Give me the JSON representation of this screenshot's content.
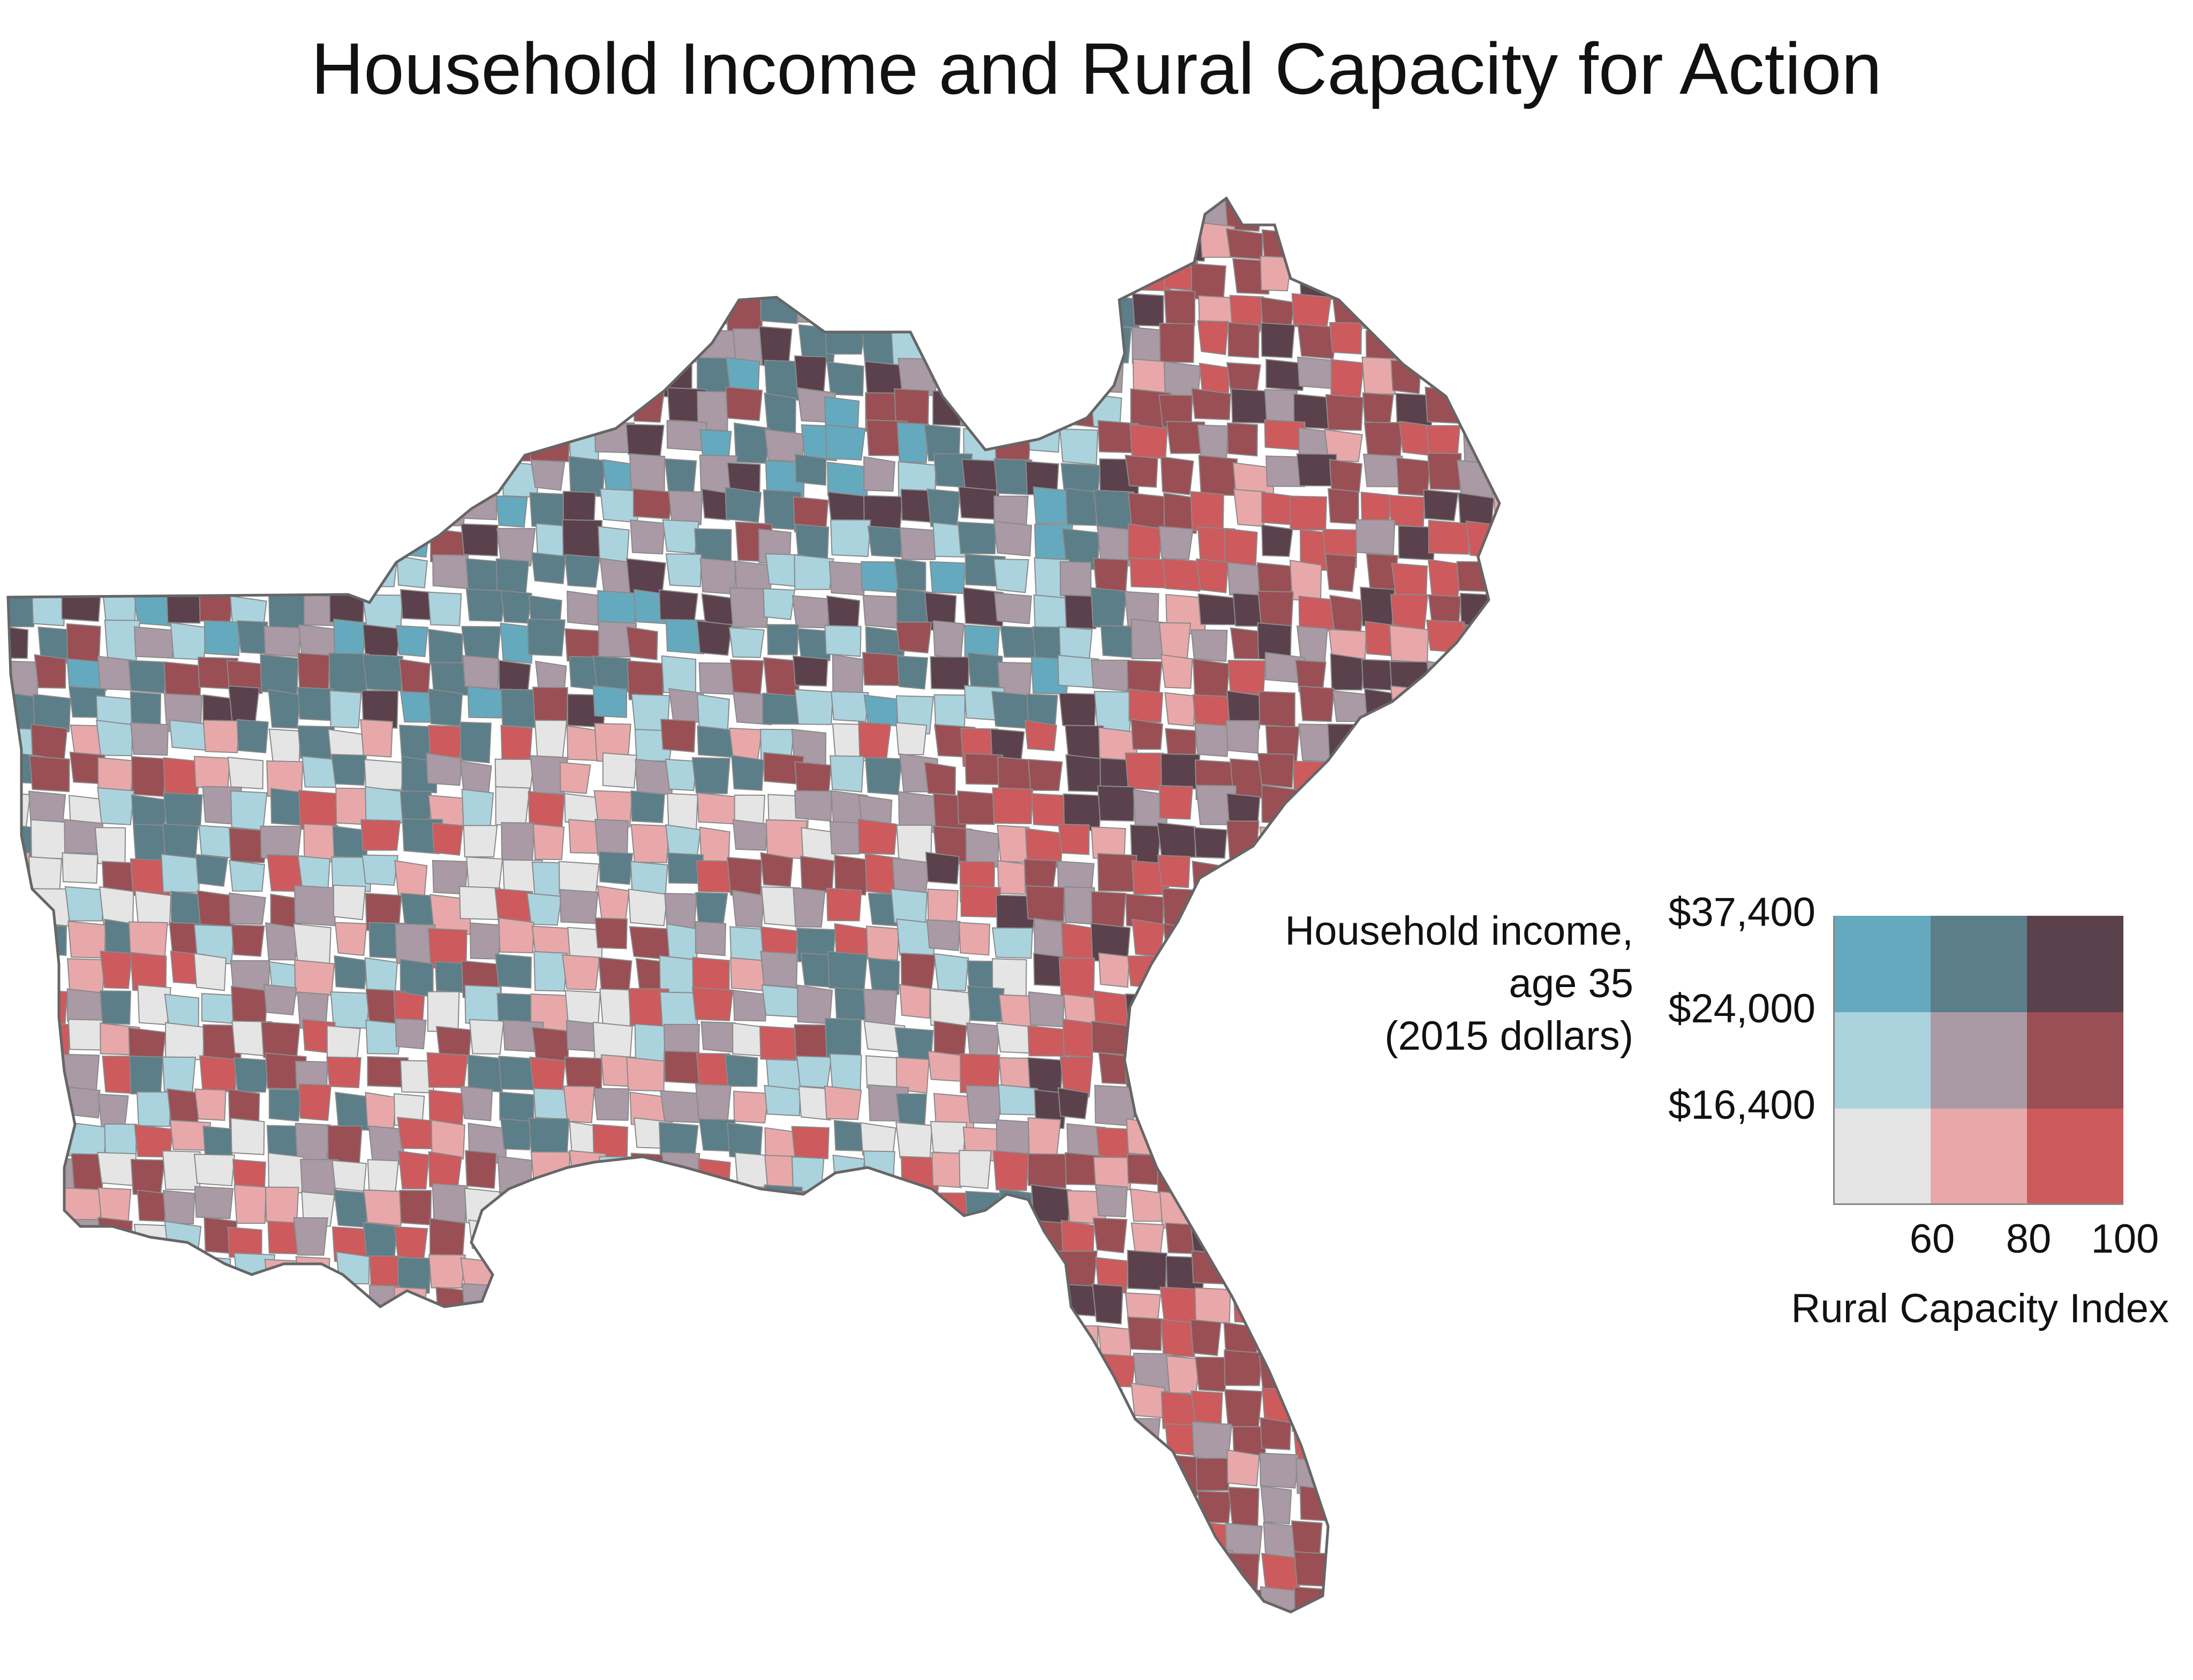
{
  "title": "Household Income and Rural Capacity for Action",
  "legend": {
    "title_lines": [
      "Household income,",
      "age 35",
      "(2015 dollars)"
    ],
    "y_ticks": [
      "$37,400",
      "$24,000",
      "$16,400"
    ],
    "x_ticks": [
      "60",
      "80",
      "100"
    ],
    "x_title": "Rural Capacity Index",
    "grid_colors": [
      [
        "#65a9be",
        "#5b7e89",
        "#5a414b"
      ],
      [
        "#aad3de",
        "#a99aa5",
        "#9a4f55"
      ],
      [
        "#e5e5e5",
        "#e8a8aa",
        "#cd5a5d"
      ]
    ]
  },
  "map": {
    "region": "Southeastern United States counties",
    "palette": [
      "#65a9be",
      "#5b7e89",
      "#5a414b",
      "#aad3de",
      "#a99aa5",
      "#9a4f55",
      "#e5e5e5",
      "#e8a8aa",
      "#cd5a5d"
    ],
    "border_color": "#8a8a8a"
  }
}
